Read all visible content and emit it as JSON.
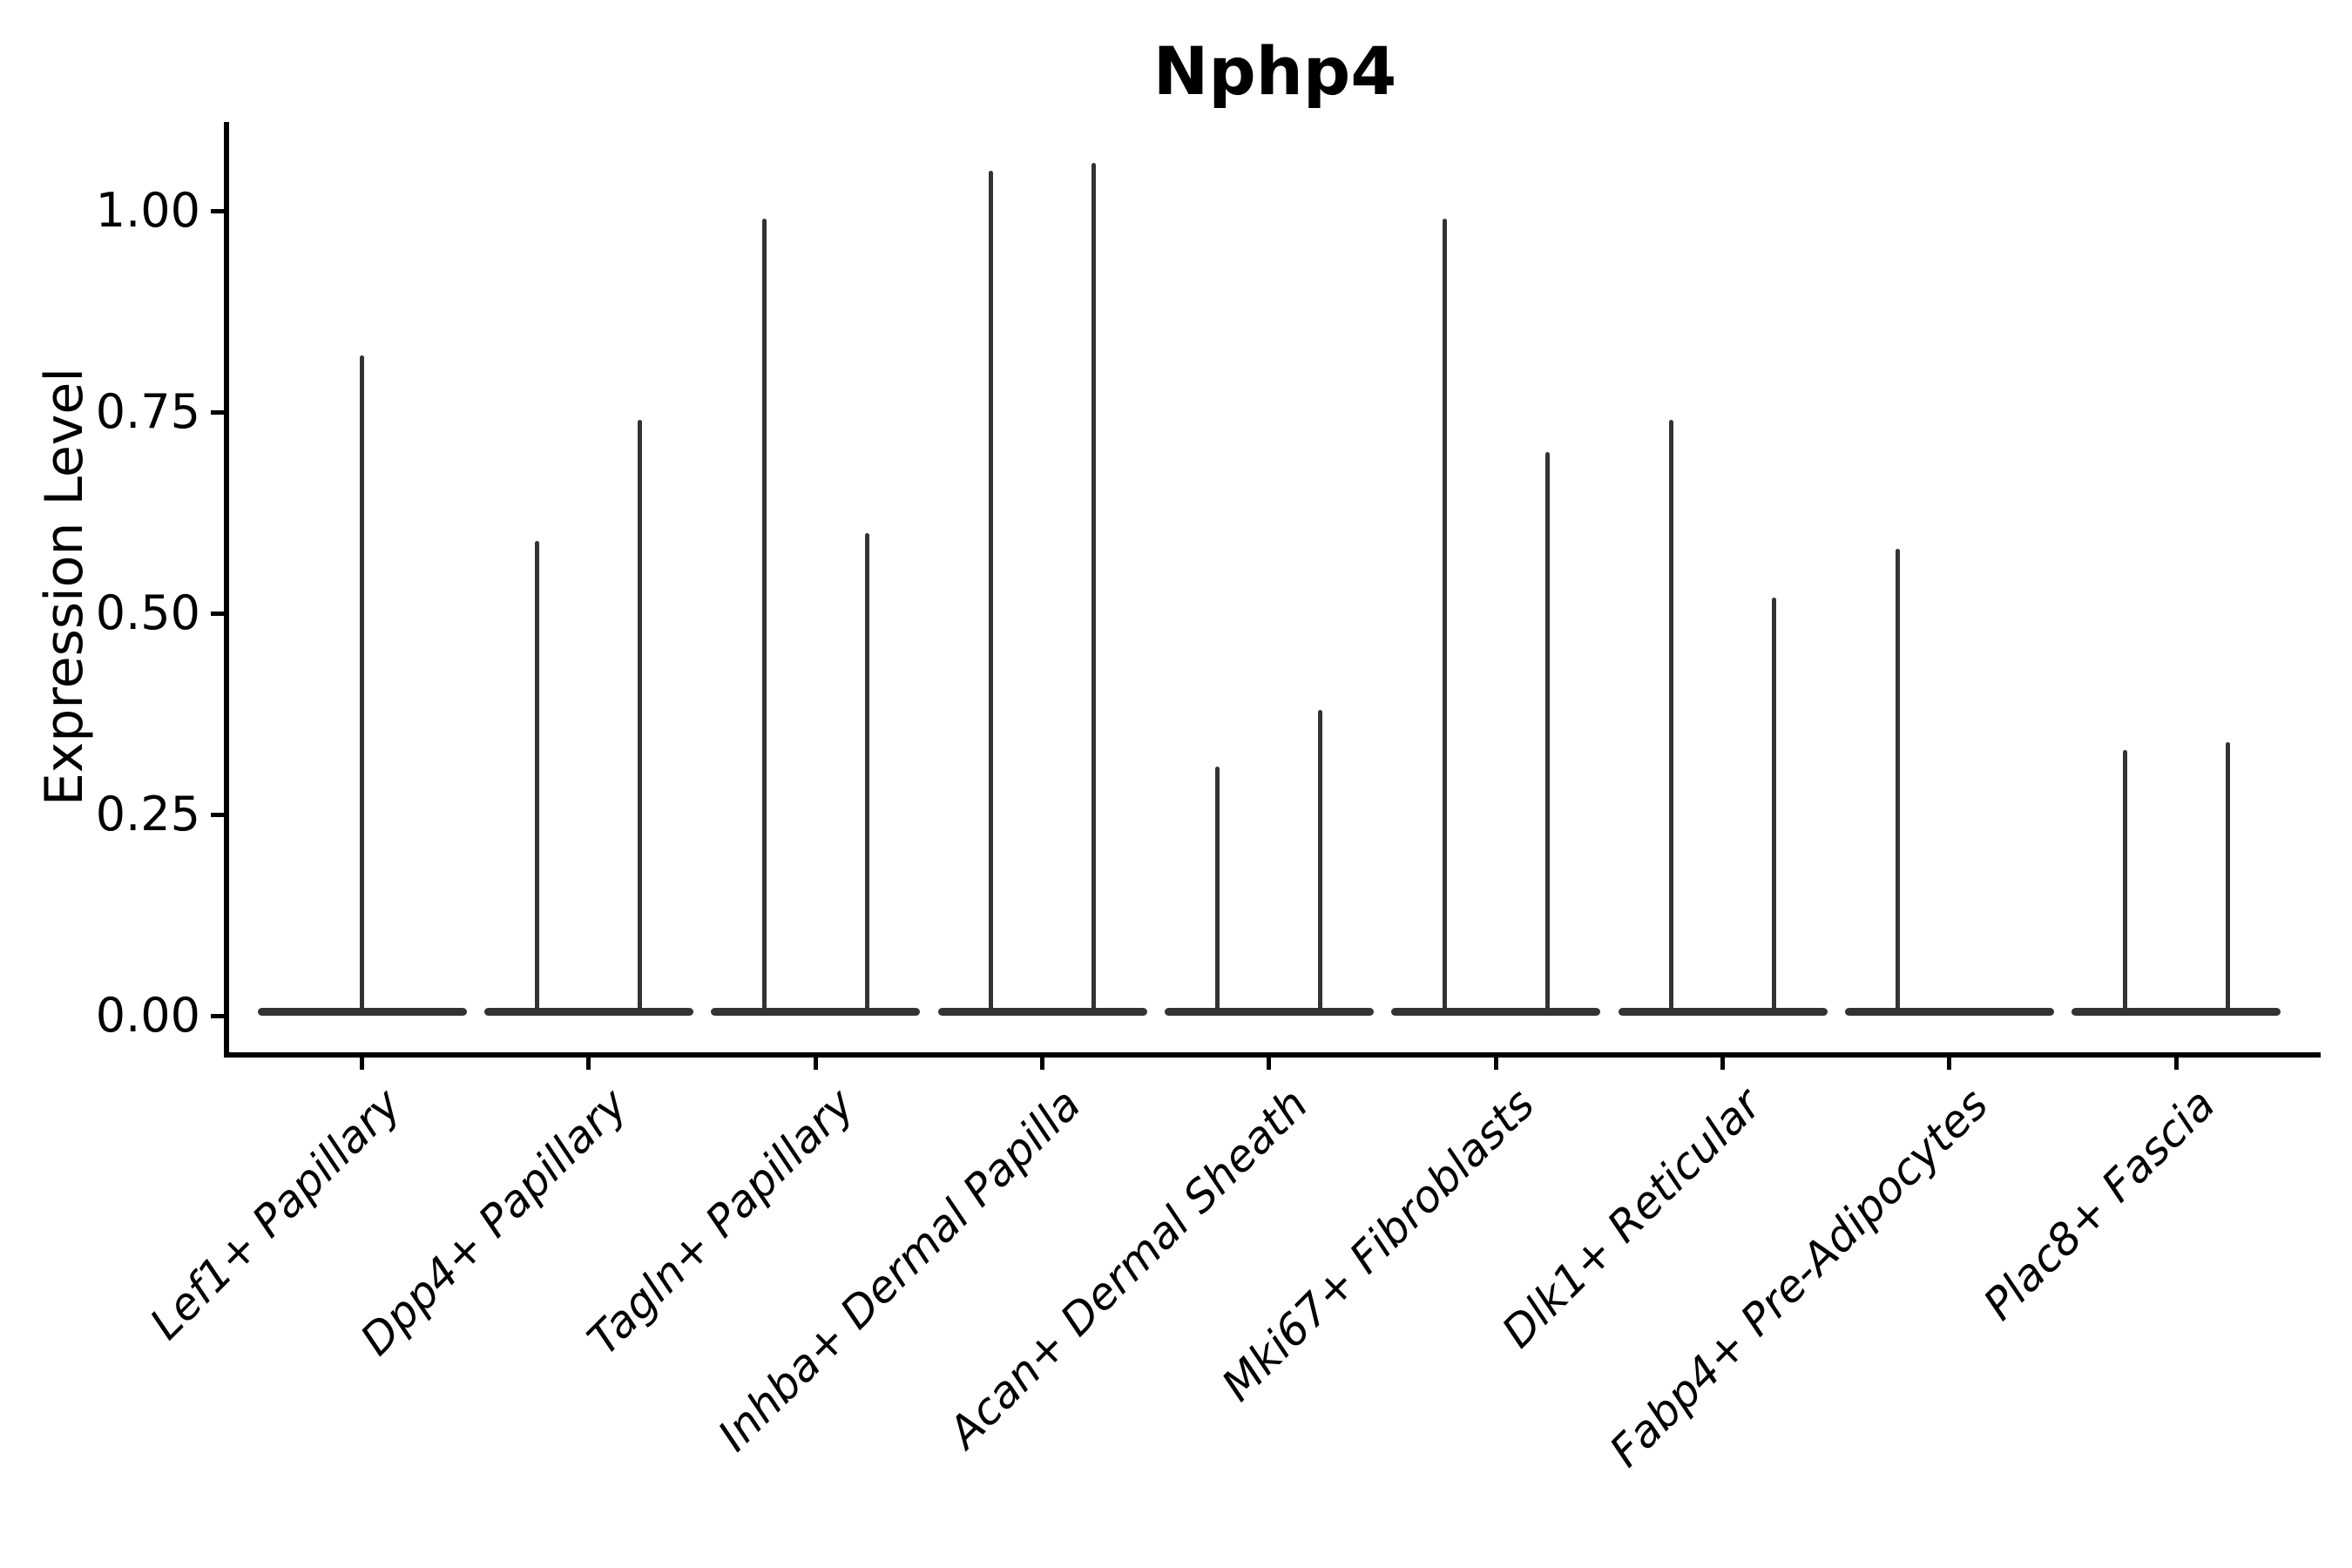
{
  "chart_data": {
    "type": "violin",
    "title": "Nphp4",
    "xlabel": "",
    "ylabel": "Expression Level",
    "ylim": [
      -0.045,
      1.11
    ],
    "grid": false,
    "legend": null,
    "yticks": [
      {
        "value": 1.0,
        "label": "1.00"
      },
      {
        "value": 0.75,
        "label": "0.75"
      },
      {
        "value": 0.5,
        "label": "0.50"
      },
      {
        "value": 0.25,
        "label": "0.25"
      },
      {
        "value": 0.0,
        "label": "0.00"
      }
    ],
    "categories": [
      "Lef1+ Papillary",
      "Dpp4+ Papillary",
      "Tagln+ Papillary",
      "Inhba+ Dermal Papilla",
      "Acan+ Dermal Sheath",
      "Mki67+ Fibroblasts",
      "Dlk1+ Reticular",
      "Fabp4+ Pre-Adipocytes",
      "Plac8+ Fascia"
    ],
    "violins": [
      {
        "category": "Lef1+ Papillary",
        "spikes": [
          {
            "offset": "center",
            "max": 0.82
          }
        ]
      },
      {
        "category": "Dpp4+ Papillary",
        "spikes": [
          {
            "offset": "left",
            "max": 0.59
          },
          {
            "offset": "right",
            "max": 0.74
          }
        ]
      },
      {
        "category": "Tagln+ Papillary",
        "spikes": [
          {
            "offset": "left",
            "max": 0.99
          },
          {
            "offset": "right",
            "max": 0.6
          }
        ]
      },
      {
        "category": "Inhba+ Dermal Papilla",
        "spikes": [
          {
            "offset": "left",
            "max": 1.05
          },
          {
            "offset": "right",
            "max": 1.06
          }
        ]
      },
      {
        "category": "Acan+ Dermal Sheath",
        "spikes": [
          {
            "offset": "left",
            "max": 0.31
          },
          {
            "offset": "right",
            "max": 0.38
          }
        ]
      },
      {
        "category": "Mki67+ Fibroblasts",
        "spikes": [
          {
            "offset": "left",
            "max": 0.99
          },
          {
            "offset": "right",
            "max": 0.7
          }
        ]
      },
      {
        "category": "Dlk1+ Reticular",
        "spikes": [
          {
            "offset": "left",
            "max": 0.74
          },
          {
            "offset": "right",
            "max": 0.52
          }
        ]
      },
      {
        "category": "Fabp4+ Pre-Adipocytes",
        "spikes": [
          {
            "offset": "left",
            "max": 0.58
          },
          {
            "offset": "right",
            "max": 0.0
          }
        ]
      },
      {
        "category": "Plac8+ Fascia",
        "spikes": [
          {
            "offset": "left",
            "max": 0.33
          },
          {
            "offset": "right",
            "max": 0.34
          }
        ]
      }
    ],
    "colors": {
      "violin": "#333333",
      "axis": "#000000",
      "text": "#000000",
      "background": "#ffffff"
    }
  }
}
